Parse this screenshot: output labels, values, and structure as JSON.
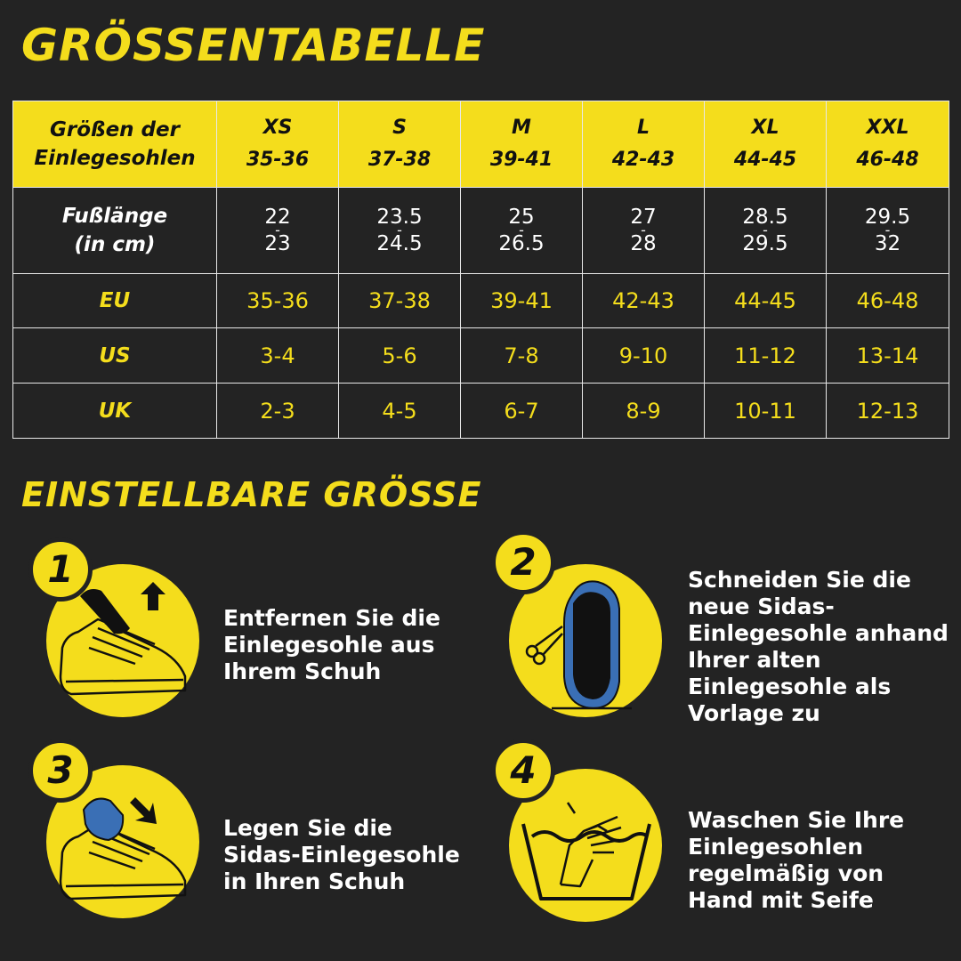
{
  "title": "GRÖSSENTABELLE",
  "subtitle": "EINSTELLBARE GRÖSSE",
  "table": {
    "header_label": [
      "Größen der",
      "Einlegesohlen"
    ],
    "sizes": [
      {
        "name": "XS",
        "range": "35-36"
      },
      {
        "name": "S",
        "range": "37-38"
      },
      {
        "name": "M",
        "range": "39-41"
      },
      {
        "name": "L",
        "range": "42-43"
      },
      {
        "name": "XL",
        "range": "44-45"
      },
      {
        "name": "XXL",
        "range": "46-48"
      }
    ],
    "foot_length": {
      "label": [
        "Fußlänge",
        "(in cm)"
      ],
      "values": [
        {
          "from": "22",
          "to": "23"
        },
        {
          "from": "23.5",
          "to": "24.5"
        },
        {
          "from": "25",
          "to": "26.5"
        },
        {
          "from": "27",
          "to": "28"
        },
        {
          "from": "28.5",
          "to": "29.5"
        },
        {
          "from": "29.5",
          "to": "32"
        }
      ]
    },
    "rows": [
      {
        "label": "EU",
        "values": [
          "35-36",
          "37-38",
          "39-41",
          "42-43",
          "44-45",
          "46-48"
        ]
      },
      {
        "label": "US",
        "values": [
          "3-4",
          "5-6",
          "7-8",
          "9-10",
          "11-12",
          "13-14"
        ]
      },
      {
        "label": "UK",
        "values": [
          "2-3",
          "4-5",
          "6-7",
          "8-9",
          "10-11",
          "12-13"
        ]
      }
    ],
    "dash": "-"
  },
  "steps": [
    {
      "number": "1",
      "lines": [
        "Entfernen Sie die",
        "Einlegesohle aus",
        "Ihrem Schuh"
      ],
      "icon": "shoe-remove-insole-icon"
    },
    {
      "number": "2",
      "lines": [
        "Schneiden Sie die",
        "neue Sidas-",
        "Einlegesohle anhand",
        "Ihrer alten",
        "Einlegesohle als",
        "Vorlage zu"
      ],
      "icon": "scissors-insole-icon"
    },
    {
      "number": "3",
      "lines": [
        "Legen Sie die",
        "Sidas-Einlegesohle",
        "in Ihren Schuh"
      ],
      "icon": "shoe-insert-insole-icon"
    },
    {
      "number": "4",
      "lines": [
        "Waschen Sie Ihre",
        "Einlegesohlen",
        "regelmäßig von",
        "Hand mit Seife"
      ],
      "icon": "hand-wash-icon"
    }
  ],
  "colors": {
    "accent": "#f4dd1c",
    "background": "#232323",
    "border": "#e8e8e8"
  }
}
